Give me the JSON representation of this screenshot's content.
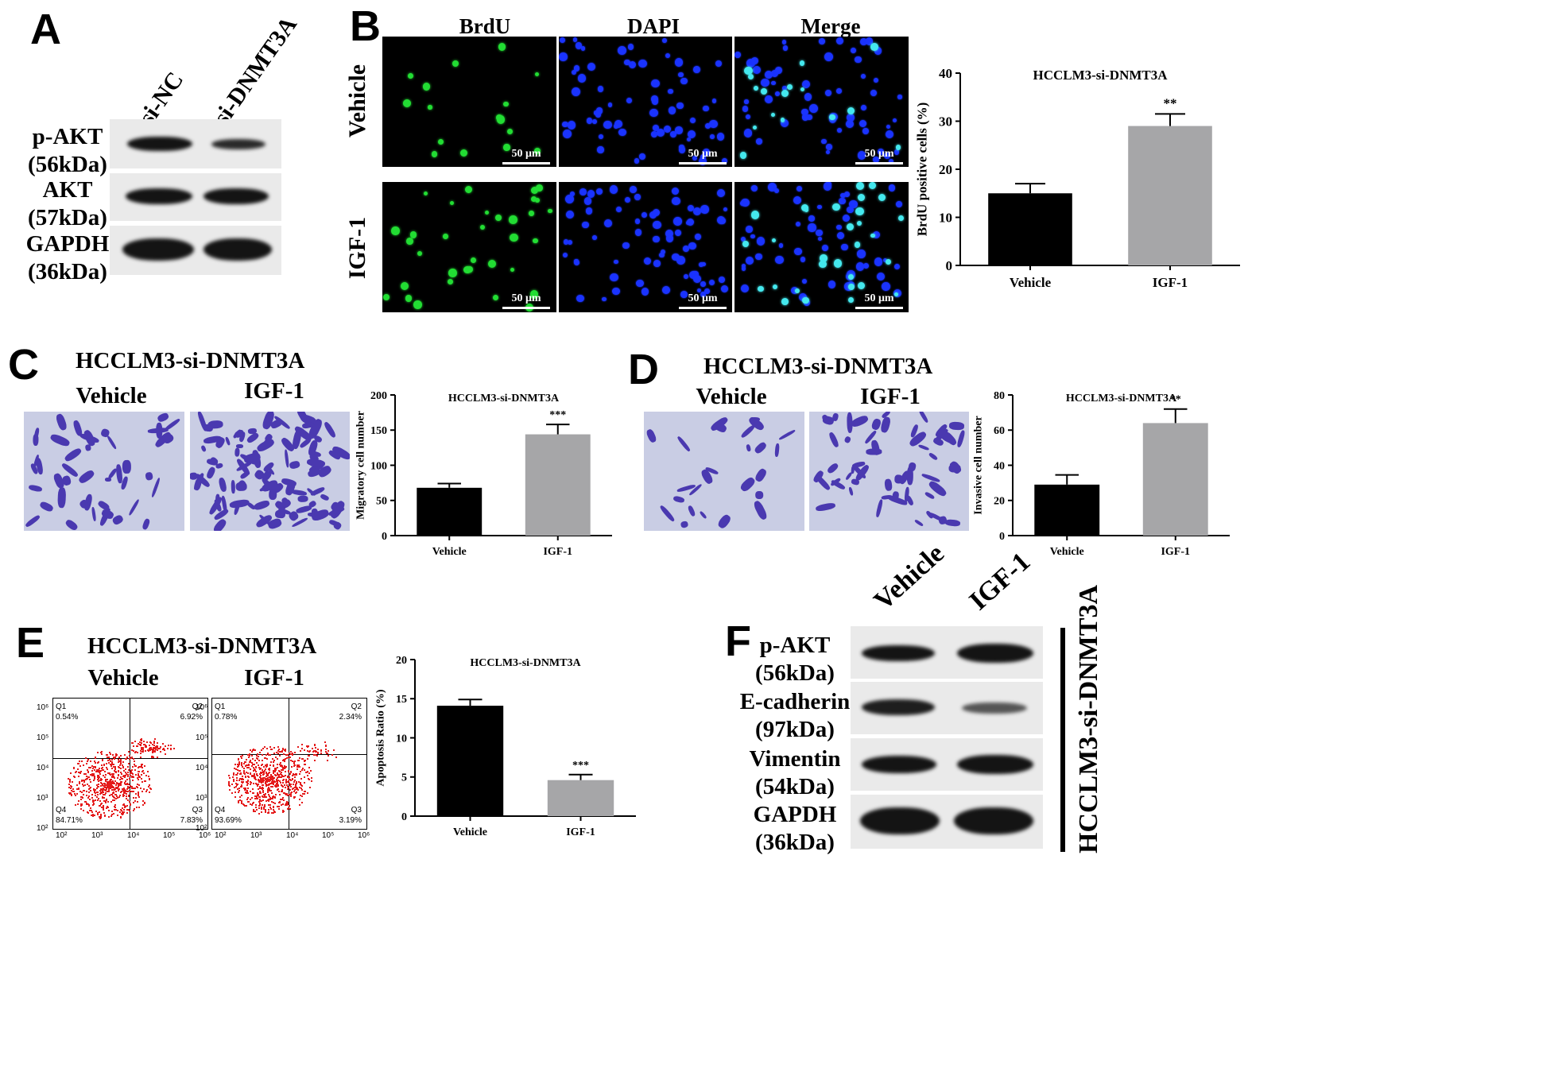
{
  "panels": {
    "A": {
      "label": "A",
      "lanes": [
        "si-NC",
        "si-DNMT3A"
      ],
      "bands": [
        {
          "name": "p-AKT",
          "size": "(56kDa)",
          "intensity": [
            1.0,
            0.75
          ]
        },
        {
          "name": "AKT",
          "size": "(57kDa)",
          "intensity": [
            1.0,
            1.0
          ]
        },
        {
          "name": "GAPDH",
          "size": "(36kDa)",
          "intensity": [
            1.0,
            1.0
          ]
        }
      ]
    },
    "B": {
      "label": "B",
      "columns": [
        "BrdU",
        "DAPI",
        "Merge"
      ],
      "rows": [
        "Vehicle",
        "IGF-1"
      ],
      "scale": "50 μm"
    },
    "C": {
      "label": "C",
      "title": "HCCLM3-si-DNMT3A",
      "images": [
        "Vehicle",
        "IGF-1"
      ]
    },
    "D": {
      "label": "D",
      "title": "HCCLM3-si-DNMT3A",
      "images": [
        "Vehicle",
        "IGF-1"
      ]
    },
    "E": {
      "label": "E",
      "title": "HCCLM3-si-DNMT3A",
      "plots": [
        {
          "name": "Vehicle",
          "q1": "Q1",
          "q1v": "0.54%",
          "q2": "Q2",
          "q2v": "6.92%",
          "q3": "Q3",
          "q3v": "7.83%",
          "q4": "Q4",
          "q4v": "84.71%"
        },
        {
          "name": "IGF-1",
          "q1": "Q1",
          "q1v": "0.78%",
          "q2": "Q2",
          "q2v": "2.34%",
          "q3": "Q3",
          "q3v": "3.19%",
          "q4": "Q4",
          "q4v": "93.69%"
        }
      ],
      "axis_ticks": [
        "10²",
        "10³",
        "10⁴",
        "10⁵",
        "10⁶"
      ]
    },
    "F": {
      "label": "F",
      "lanes": [
        "Vehicle",
        "IGF-1"
      ],
      "side_label": "HCCLM3-si-DNMT3A",
      "bands": [
        {
          "name": "p-AKT",
          "size": "(56kDa)",
          "intensity": [
            1.0,
            1.05
          ]
        },
        {
          "name": "E-cadherin",
          "size": "(97kDa)",
          "intensity": [
            1.0,
            0.6
          ]
        },
        {
          "name": "Vimentin",
          "size": "(54kDa)",
          "intensity": [
            1.0,
            1.0
          ]
        },
        {
          "name": "GAPDH",
          "size": "(36kDa)",
          "intensity": [
            1.0,
            1.0
          ]
        }
      ]
    }
  },
  "chart_data": [
    {
      "id": "B",
      "type": "bar",
      "title": "HCCLM3-si-DNMT3A",
      "ylabel": "BrdU positive cells (%)",
      "categories": [
        "Vehicle",
        "IGF-1"
      ],
      "values": [
        15.0,
        29.0
      ],
      "errors": [
        2.0,
        2.5
      ],
      "ylim": [
        0,
        40
      ],
      "yticks": [
        0,
        10,
        20,
        30,
        40
      ],
      "annotations": [
        "",
        "**"
      ],
      "colors": [
        "#000000",
        "#a6a6a8"
      ]
    },
    {
      "id": "C",
      "type": "bar",
      "title": "HCCLM3-si-DNMT3A",
      "ylabel": "Migratory cell number",
      "categories": [
        "Vehicle",
        "IGF-1"
      ],
      "values": [
        68,
        144
      ],
      "errors": [
        6,
        14
      ],
      "ylim": [
        0,
        200
      ],
      "yticks": [
        0,
        50,
        100,
        150,
        200
      ],
      "annotations": [
        "",
        "***"
      ],
      "colors": [
        "#000000",
        "#a6a6a8"
      ]
    },
    {
      "id": "D",
      "type": "bar",
      "title": "HCCLM3-si-DNMT3A",
      "ylabel": "Invasive cell number",
      "categories": [
        "Vehicle",
        "IGF-1"
      ],
      "values": [
        29,
        64
      ],
      "errors": [
        5.5,
        8
      ],
      "ylim": [
        0,
        80
      ],
      "yticks": [
        0,
        20,
        40,
        60,
        80
      ],
      "annotations": [
        "",
        "**"
      ],
      "colors": [
        "#000000",
        "#a6a6a8"
      ]
    },
    {
      "id": "E",
      "type": "bar",
      "title": "HCCLM3-si-DNMT3A",
      "ylabel": "Apoptosis Ratio (%)",
      "categories": [
        "Vehicle",
        "IGF-1"
      ],
      "values": [
        14.1,
        4.6
      ],
      "errors": [
        0.8,
        0.7
      ],
      "ylim": [
        0,
        20
      ],
      "yticks": [
        0,
        5,
        10,
        15,
        20
      ],
      "annotations": [
        "",
        "***"
      ],
      "colors": [
        "#000000",
        "#a6a6a8"
      ]
    }
  ]
}
